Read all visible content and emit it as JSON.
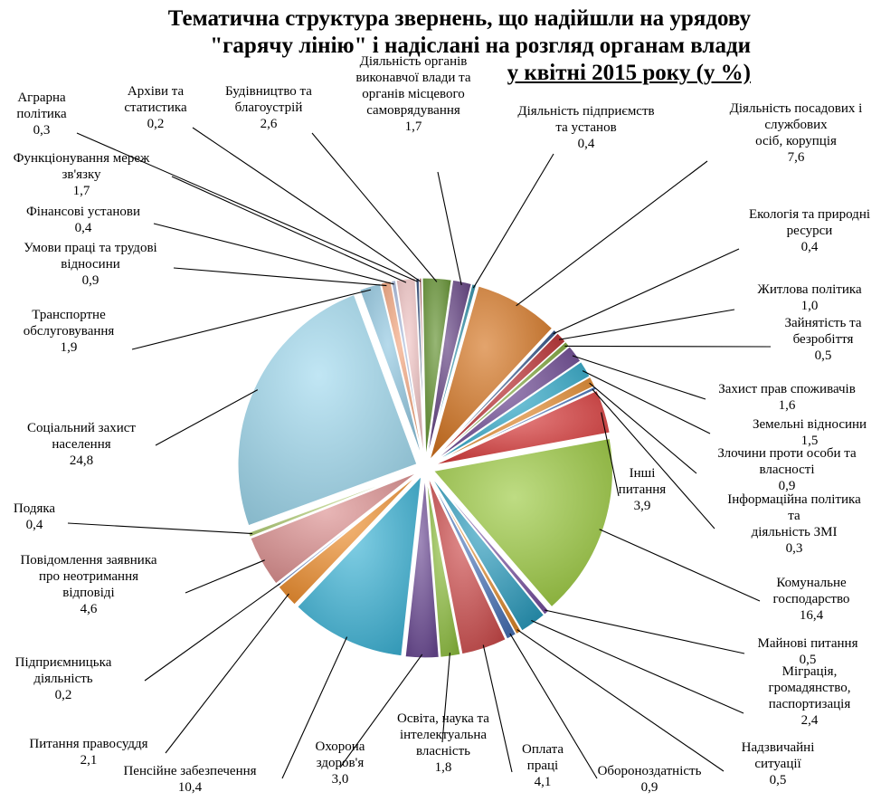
{
  "title_lines": [
    "Тематична структура звернень, що надійшли на урядову",
    "\"гарячу лінію\" і надіслані на розгляд органам влади",
    "у квітні 2015 року (у %)"
  ],
  "chart_data": {
    "type": "pie",
    "title": "Тематична структура звернень, що надійшли на урядову \"гарячу лінію\" і надіслані на розгляд органам влади у квітні 2015 року (у %)",
    "slices": [
      {
        "name": "Аграрна політика",
        "label_lines": [
          "Аграрна",
          "політика"
        ],
        "value_label": "0,3",
        "value": 0.3,
        "color": "#1f3a6b"
      },
      {
        "name": "Архіви та статистика",
        "label_lines": [
          "Архіви та",
          "статистика"
        ],
        "value_label": "0,2",
        "value": 0.2,
        "color": "#8b2a2a"
      },
      {
        "name": "Будівництво та благоустрій",
        "label_lines": [
          "Будівництво та",
          "благоустрій"
        ],
        "value_label": "2,6",
        "value": 2.6,
        "color": "#5f8f2b"
      },
      {
        "name": "Діяльність органів виконавчої влади та органів місцевого самоврядування",
        "label_lines": [
          "Діяльність органів",
          "виконавчої влади та",
          "органів місцевого",
          "самоврядування"
        ],
        "value_label": "1,7",
        "value": 1.7,
        "color": "#5e3b7e"
      },
      {
        "name": "Діяльність підприємств та установ",
        "label_lines": [
          "Діяльність підприємств",
          "та установ"
        ],
        "value_label": "0,4",
        "value": 0.4,
        "color": "#2d8fa8"
      },
      {
        "name": "Діяльність посадових і службових осіб, корупція",
        "label_lines": [
          "Діяльність посадових і",
          "службових",
          "осіб, корупція"
        ],
        "value_label": "7,6",
        "value": 7.6,
        "color": "#d4731e"
      },
      {
        "name": "Екологія та природні ресурси",
        "label_lines": [
          "Екологія та природні",
          "ресурси"
        ],
        "value_label": "0,4",
        "value": 0.4,
        "color": "#2b4f86"
      },
      {
        "name": "Житлова політика",
        "label_lines": [
          "Житлова політика"
        ],
        "value_label": "1,0",
        "value": 1.0,
        "color": "#b8292c"
      },
      {
        "name": "Зайнятість та безробіття",
        "label_lines": [
          "Зайнятість та",
          "безробіття"
        ],
        "value_label": "0,5",
        "value": 0.5,
        "color": "#7da63a"
      },
      {
        "name": "Захист прав споживачів",
        "label_lines": [
          "Захист прав споживачів"
        ],
        "value_label": "1,6",
        "value": 1.6,
        "color": "#6a4590"
      },
      {
        "name": "Земельні відносини",
        "label_lines": [
          "Земельні відносини"
        ],
        "value_label": "1,5",
        "value": 1.5,
        "color": "#2ea7c7"
      },
      {
        "name": "Злочини проти особи та власності",
        "label_lines": [
          "Злочини проти особи та",
          "власності"
        ],
        "value_label": "0,9",
        "value": 0.9,
        "color": "#e2882c"
      },
      {
        "name": "Інформаційна політика та діяльність ЗМІ",
        "label_lines": [
          "Інформаційна політика",
          "та",
          "діяльність ЗМІ"
        ],
        "value_label": "0,3",
        "value": 0.3,
        "color": "#4471b8"
      },
      {
        "name": "Інші питання",
        "label_lines": [
          "Інші",
          "питання"
        ],
        "value_label": "3,9",
        "value": 3.9,
        "color": "#d83a3a"
      },
      {
        "name": "Комунальне господарство",
        "label_lines": [
          "Комунальне",
          "господарство"
        ],
        "value_label": "16,4",
        "value": 16.4,
        "color": "#9bc940"
      },
      {
        "name": "Майнові питання",
        "label_lines": [
          "Майнові питання"
        ],
        "value_label": "0,5",
        "value": 0.5,
        "color": "#7b55a3"
      },
      {
        "name": "Міграція, громадянство, паспортизація",
        "label_lines": [
          "Міграція,",
          "громадянство,",
          "паспортизація"
        ],
        "value_label": "2,4",
        "value": 2.4,
        "color": "#2a9bbd"
      },
      {
        "name": "Надзвичайні ситуації",
        "label_lines": [
          "Надзвичайні",
          "ситуації"
        ],
        "value_label": "0,5",
        "value": 0.5,
        "color": "#e08a2e"
      },
      {
        "name": "Обороноздатність",
        "label_lines": [
          "Обороноздатність"
        ],
        "value_label": "0,9",
        "value": 0.9,
        "color": "#4a74b9"
      },
      {
        "name": "Оплата праці",
        "label_lines": [
          "Оплата",
          "праці"
        ],
        "value_label": "4,1",
        "value": 4.1,
        "color": "#cd4b4b"
      },
      {
        "name": "Освіта, наука та інтелектуальна власність",
        "label_lines": [
          "Освіта, наука та",
          "інтелектуальна",
          "власність"
        ],
        "value_label": "1,8",
        "value": 1.8,
        "color": "#8ebf3f"
      },
      {
        "name": "Охорона здоров'я",
        "label_lines": [
          "Охорона",
          "здоров'я"
        ],
        "value_label": "3,0",
        "value": 3.0,
        "color": "#6b4a94"
      },
      {
        "name": "Пенсійне забезпечення",
        "label_lines": [
          "Пенсійне забезпечення"
        ],
        "value_label": "10,4",
        "value": 10.4,
        "color": "#3cb3d6"
      },
      {
        "name": "Питання правосуддя",
        "label_lines": [
          "Питання правосуддя"
        ],
        "value_label": "2,1",
        "value": 2.1,
        "color": "#f0902f"
      },
      {
        "name": "Підприємницька діяльність",
        "label_lines": [
          "Підприємницька",
          "діяльність"
        ],
        "value_label": "0,2",
        "value": 0.2,
        "color": "#6d8fcc"
      },
      {
        "name": "Повідомлення заявника про неотримання відповіді",
        "label_lines": [
          "Повідомлення заявника",
          "про неотримання",
          "відповіді"
        ],
        "value_label": "4,6",
        "value": 4.6,
        "color": "#dc8e8e"
      },
      {
        "name": "Подяка",
        "label_lines": [
          "Подяка"
        ],
        "value_label": "0,4",
        "value": 0.4,
        "color": "#b6d27a"
      },
      {
        "name": "Соціальний захист населення",
        "label_lines": [
          "Соціальний захист",
          "населення"
        ],
        "value_label": "24,8",
        "value": 24.8,
        "color": "#9fd9ee"
      },
      {
        "name": "Транспортне обслуговування",
        "label_lines": [
          "Транспортне",
          "обслуговування"
        ],
        "value_label": "1,9",
        "value": 1.9,
        "color": "#8ec6e0"
      },
      {
        "name": "Умови праці та трудові відносини",
        "label_lines": [
          "Умови праці та трудові",
          "відносини"
        ],
        "value_label": "0,9",
        "value": 0.9,
        "color": "#f2a37a"
      },
      {
        "name": "Фінансові установи",
        "label_lines": [
          "Фінансові установи"
        ],
        "value_label": "0,4",
        "value": 0.4,
        "color": "#a7b9dc"
      },
      {
        "name": "Функціонування мереж зв'язку",
        "label_lines": [
          "Функціонування мереж",
          "зв'язку"
        ],
        "value_label": "1,7",
        "value": 1.7,
        "color": "#f0c2c2"
      }
    ]
  }
}
